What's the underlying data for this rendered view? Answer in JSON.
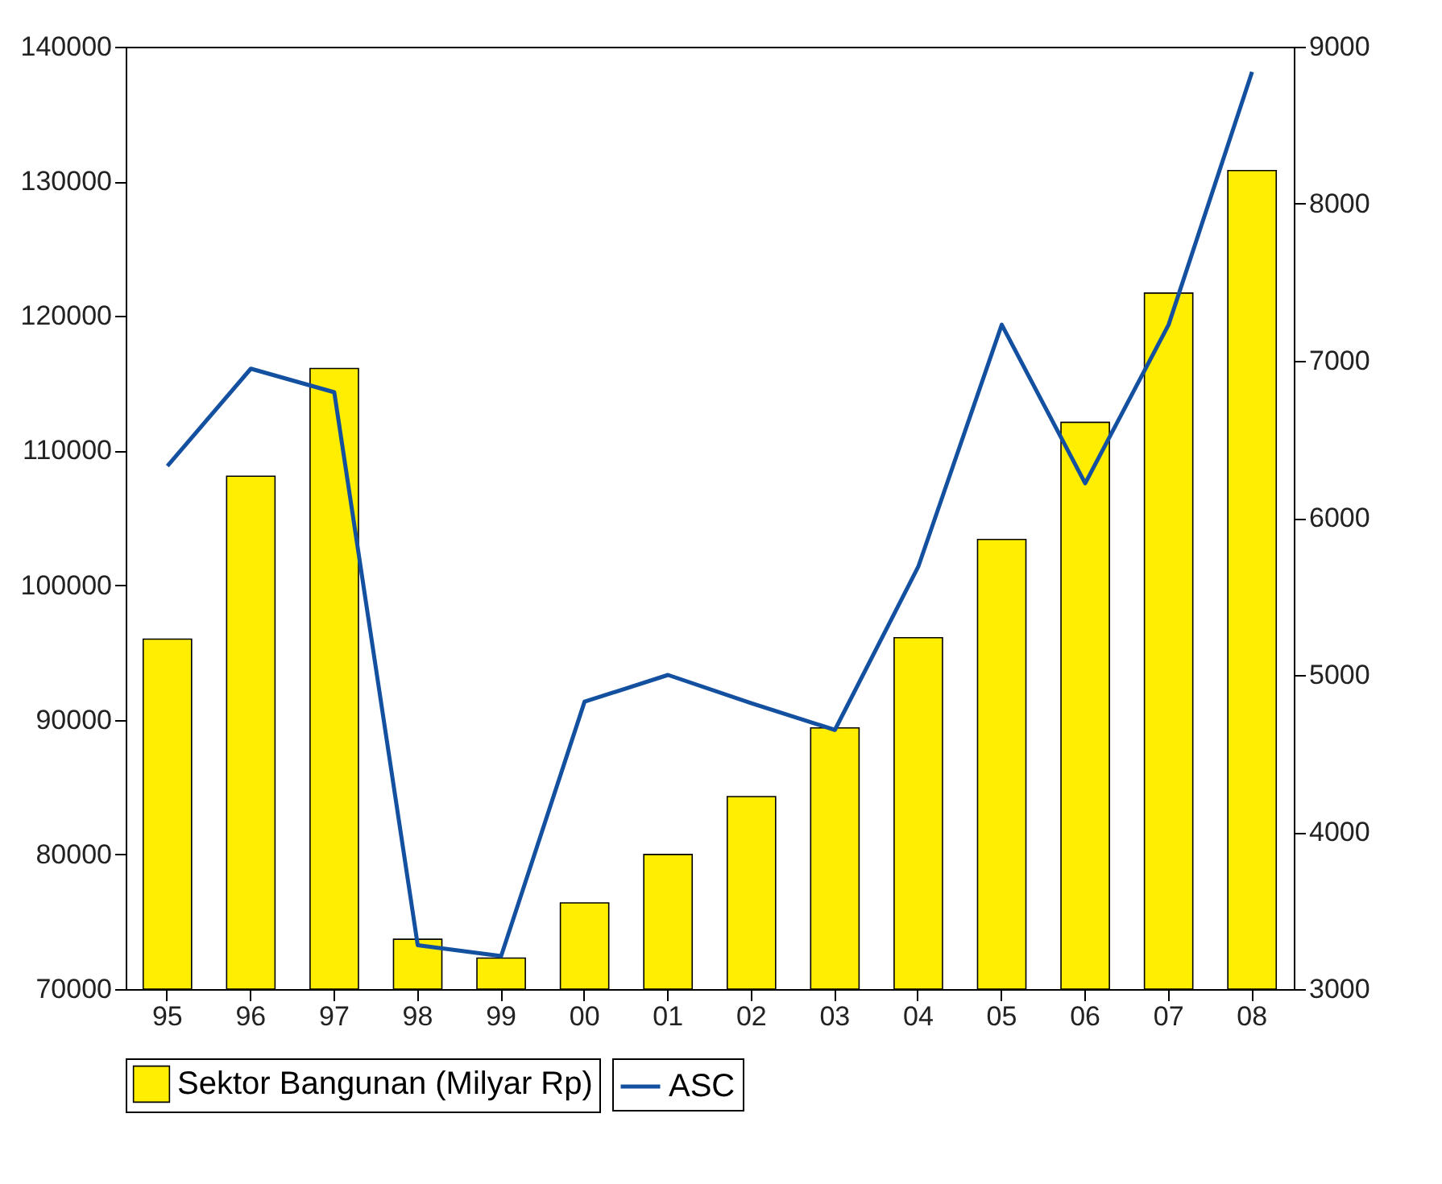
{
  "chart_data": {
    "type": "bar",
    "categories": [
      "95",
      "96",
      "97",
      "98",
      "99",
      "00",
      "01",
      "02",
      "03",
      "04",
      "05",
      "06",
      "07",
      "08"
    ],
    "series": [
      {
        "name": "Sektor Bangunan (Milyar Rp)",
        "color": "#ffee00",
        "values": [
          96000,
          108100,
          116100,
          73700,
          72300,
          76400,
          80000,
          84300,
          89400,
          96100,
          103400,
          112100,
          121700,
          130800
        ]
      },
      {
        "name": "ASC",
        "type": "line",
        "axis": "y2",
        "color": "#1450a0",
        "values": [
          6330,
          6950,
          6800,
          3280,
          3210,
          4830,
          5000,
          4820,
          4650,
          5690,
          7230,
          6220,
          7230,
          8840
        ]
      }
    ],
    "ylim": [
      70000,
      140000
    ],
    "yticks": [
      70000,
      80000,
      90000,
      100000,
      110000,
      120000,
      130000,
      140000
    ],
    "y2lim": [
      3000,
      9000
    ],
    "y2ticks": [
      3000,
      4000,
      5000,
      6000,
      7000,
      8000,
      9000
    ],
    "grid": false,
    "legend": "bottom",
    "marker": "none",
    "line_style": "solid"
  }
}
